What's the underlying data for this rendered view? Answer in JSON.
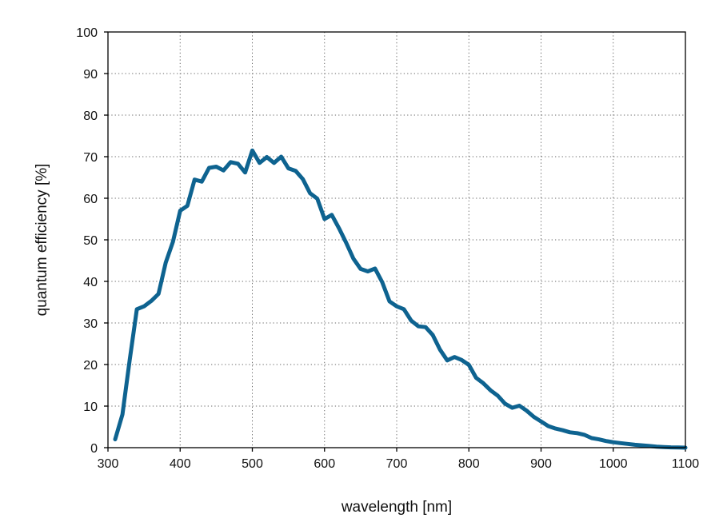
{
  "chart_data": {
    "type": "line",
    "title": "",
    "xlabel": "wavelength [nm]",
    "ylabel": "quantum efficiency [%]",
    "xlim": [
      300,
      1100
    ],
    "ylim": [
      0,
      100
    ],
    "x_ticks": [
      300,
      400,
      500,
      600,
      700,
      800,
      900,
      1000,
      1100
    ],
    "y_ticks": [
      0,
      10,
      20,
      30,
      40,
      50,
      60,
      70,
      80,
      90,
      100
    ],
    "grid": true,
    "legend": "none",
    "series": [
      {
        "color": "#0e6390",
        "x": [
          310,
          320,
          330,
          340,
          350,
          360,
          370,
          380,
          390,
          400,
          410,
          420,
          430,
          440,
          450,
          460,
          470,
          480,
          490,
          500,
          510,
          520,
          530,
          540,
          550,
          560,
          570,
          580,
          590,
          600,
          610,
          620,
          630,
          640,
          650,
          660,
          670,
          680,
          690,
          700,
          710,
          720,
          730,
          740,
          750,
          760,
          770,
          780,
          790,
          800,
          810,
          820,
          830,
          840,
          850,
          860,
          870,
          880,
          890,
          900,
          910,
          920,
          930,
          940,
          950,
          960,
          970,
          980,
          990,
          1000,
          1010,
          1020,
          1030,
          1040,
          1050,
          1060,
          1070,
          1080,
          1090,
          1100
        ],
        "y": [
          2,
          8,
          21,
          33.3,
          34,
          35.3,
          37,
          44.5,
          49.5,
          57,
          58.2,
          64.5,
          64,
          67.3,
          67.6,
          66.7,
          68.7,
          68.3,
          66.2,
          71.5,
          68.5,
          69.9,
          68.5,
          70,
          67.2,
          66.6,
          64.6,
          61.2,
          59.9,
          55,
          56,
          52.8,
          49.3,
          45.5,
          43,
          42.4,
          43.1,
          39.8,
          35.2,
          34,
          33.3,
          30.6,
          29.2,
          29,
          27.1,
          23.6,
          21,
          21.8,
          21.1,
          19.9,
          16.8,
          15.5,
          13.8,
          12.5,
          10.6,
          9.6,
          10.1,
          8.9,
          7.4,
          6.3,
          5.2,
          4.6,
          4.2,
          3.7,
          3.5,
          3.1,
          2.3,
          2,
          1.6,
          1.3,
          1.1,
          0.9,
          0.7,
          0.55,
          0.4,
          0.25,
          0.15,
          0.08,
          0.04,
          0
        ]
      }
    ]
  }
}
